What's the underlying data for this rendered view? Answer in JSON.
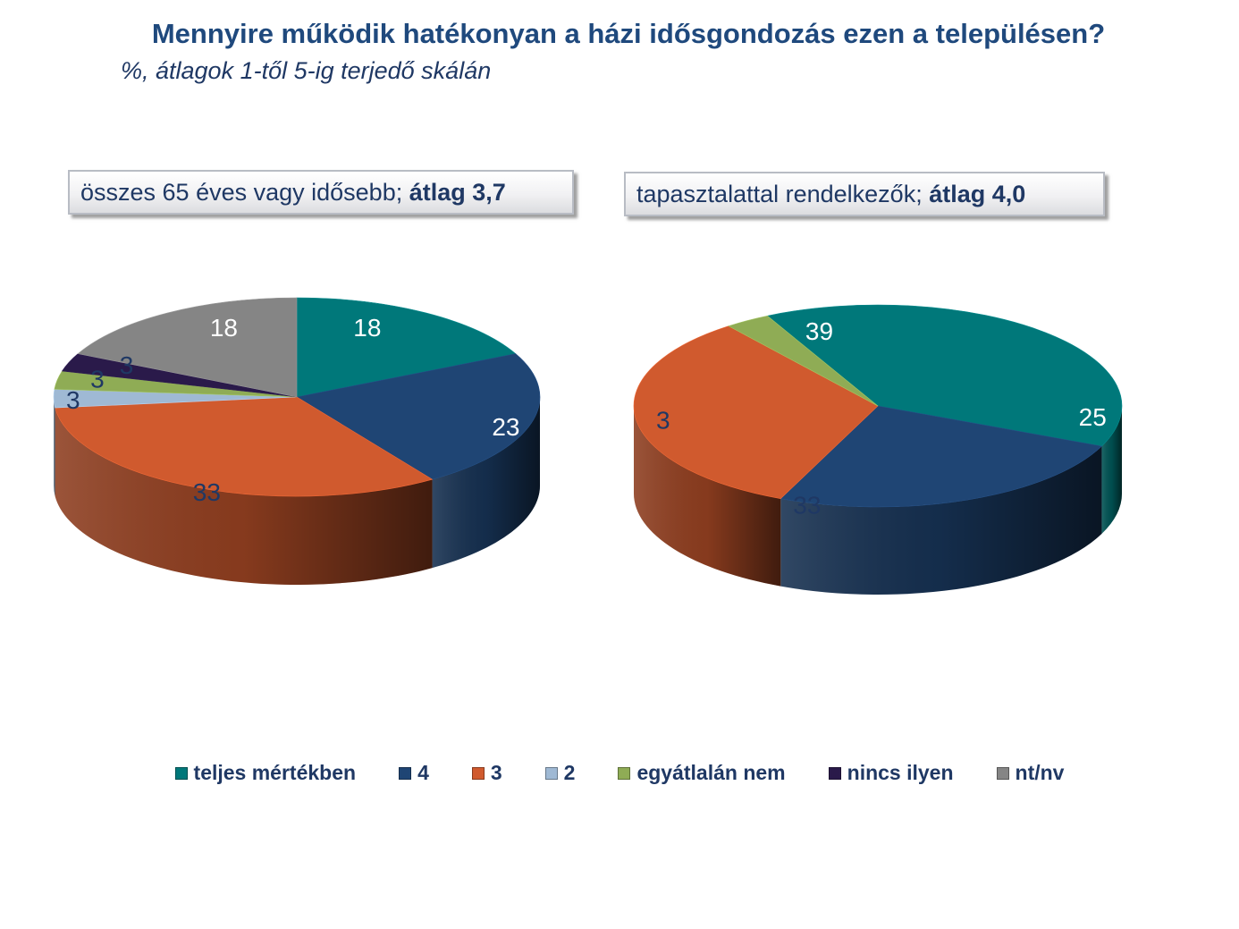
{
  "title": "Mennyire működik hatékonyan a házi idősgondozás ezen a településen?",
  "subtitle": "%, átlagok 1-től 5-ig terjedő skálán",
  "legend": [
    {
      "label": "teljes mértékben",
      "color": "#00787a"
    },
    {
      "label": "4",
      "color": "#1f4574"
    },
    {
      "label": "3",
      "color": "#d05a2e"
    },
    {
      "label": "2",
      "color": "#9fb9d4"
    },
    {
      "label": "egyátlalán nem",
      "color": "#8fac55"
    },
    {
      "label": "nincs ilyen",
      "color": "#2a1a4a"
    },
    {
      "label": "nt/nv",
      "color": "#858585"
    }
  ],
  "chart_data": [
    {
      "type": "pie",
      "box_label": "összes 65 éves vagy idősebb; ",
      "box_label_bold": "átlag 3,7",
      "categories": [
        "teljes mértékben",
        "4",
        "3",
        "2",
        "egyátlalán nem",
        "nincs ilyen",
        "nt/nv"
      ],
      "values": [
        18,
        23,
        33,
        3,
        3,
        3,
        18
      ],
      "data_labels": [
        "18",
        "23",
        "33",
        "3",
        "3",
        "3",
        "18"
      ]
    },
    {
      "type": "pie",
      "box_label": "tapasztalattal rendelkezők; ",
      "box_label_bold": "átlag 4,0",
      "categories": [
        "teljes mértékben",
        "4",
        "3",
        "egyátlalán nem"
      ],
      "values": [
        39,
        25,
        33,
        3
      ],
      "data_labels": [
        "39",
        "25",
        "33",
        "3"
      ]
    }
  ]
}
